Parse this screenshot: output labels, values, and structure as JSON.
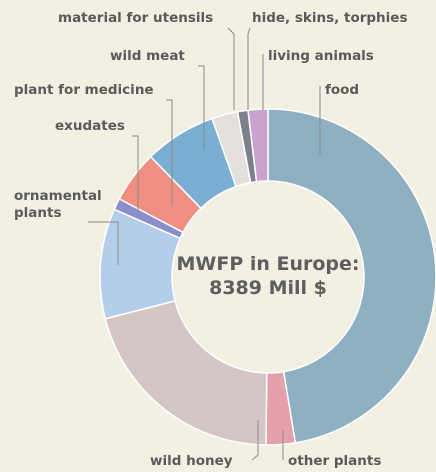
{
  "chart_data": {
    "type": "donut",
    "center_text": [
      "MWFP in Europe:",
      "8389 Mill $"
    ],
    "categories": [
      "food",
      "other plants",
      "wild honey",
      "ornamental plants",
      "exudates",
      "plant for medicine",
      "wild meat",
      "material for utensils",
      "hide, skins, torphies",
      "living animals"
    ],
    "values": [
      47.4,
      2.8,
      20.8,
      10.6,
      1.1,
      5.0,
      6.9,
      2.5,
      1.0,
      1.9
    ],
    "colors": [
      "#8fb0c0",
      "#e4a0ab",
      "#d3c6c4",
      "#b4cdea",
      "#8a8fcb",
      "#ef8f82",
      "#7aaed3",
      "#e5e0de",
      "#7d7f8a",
      "#c9a3cf"
    ]
  }
}
